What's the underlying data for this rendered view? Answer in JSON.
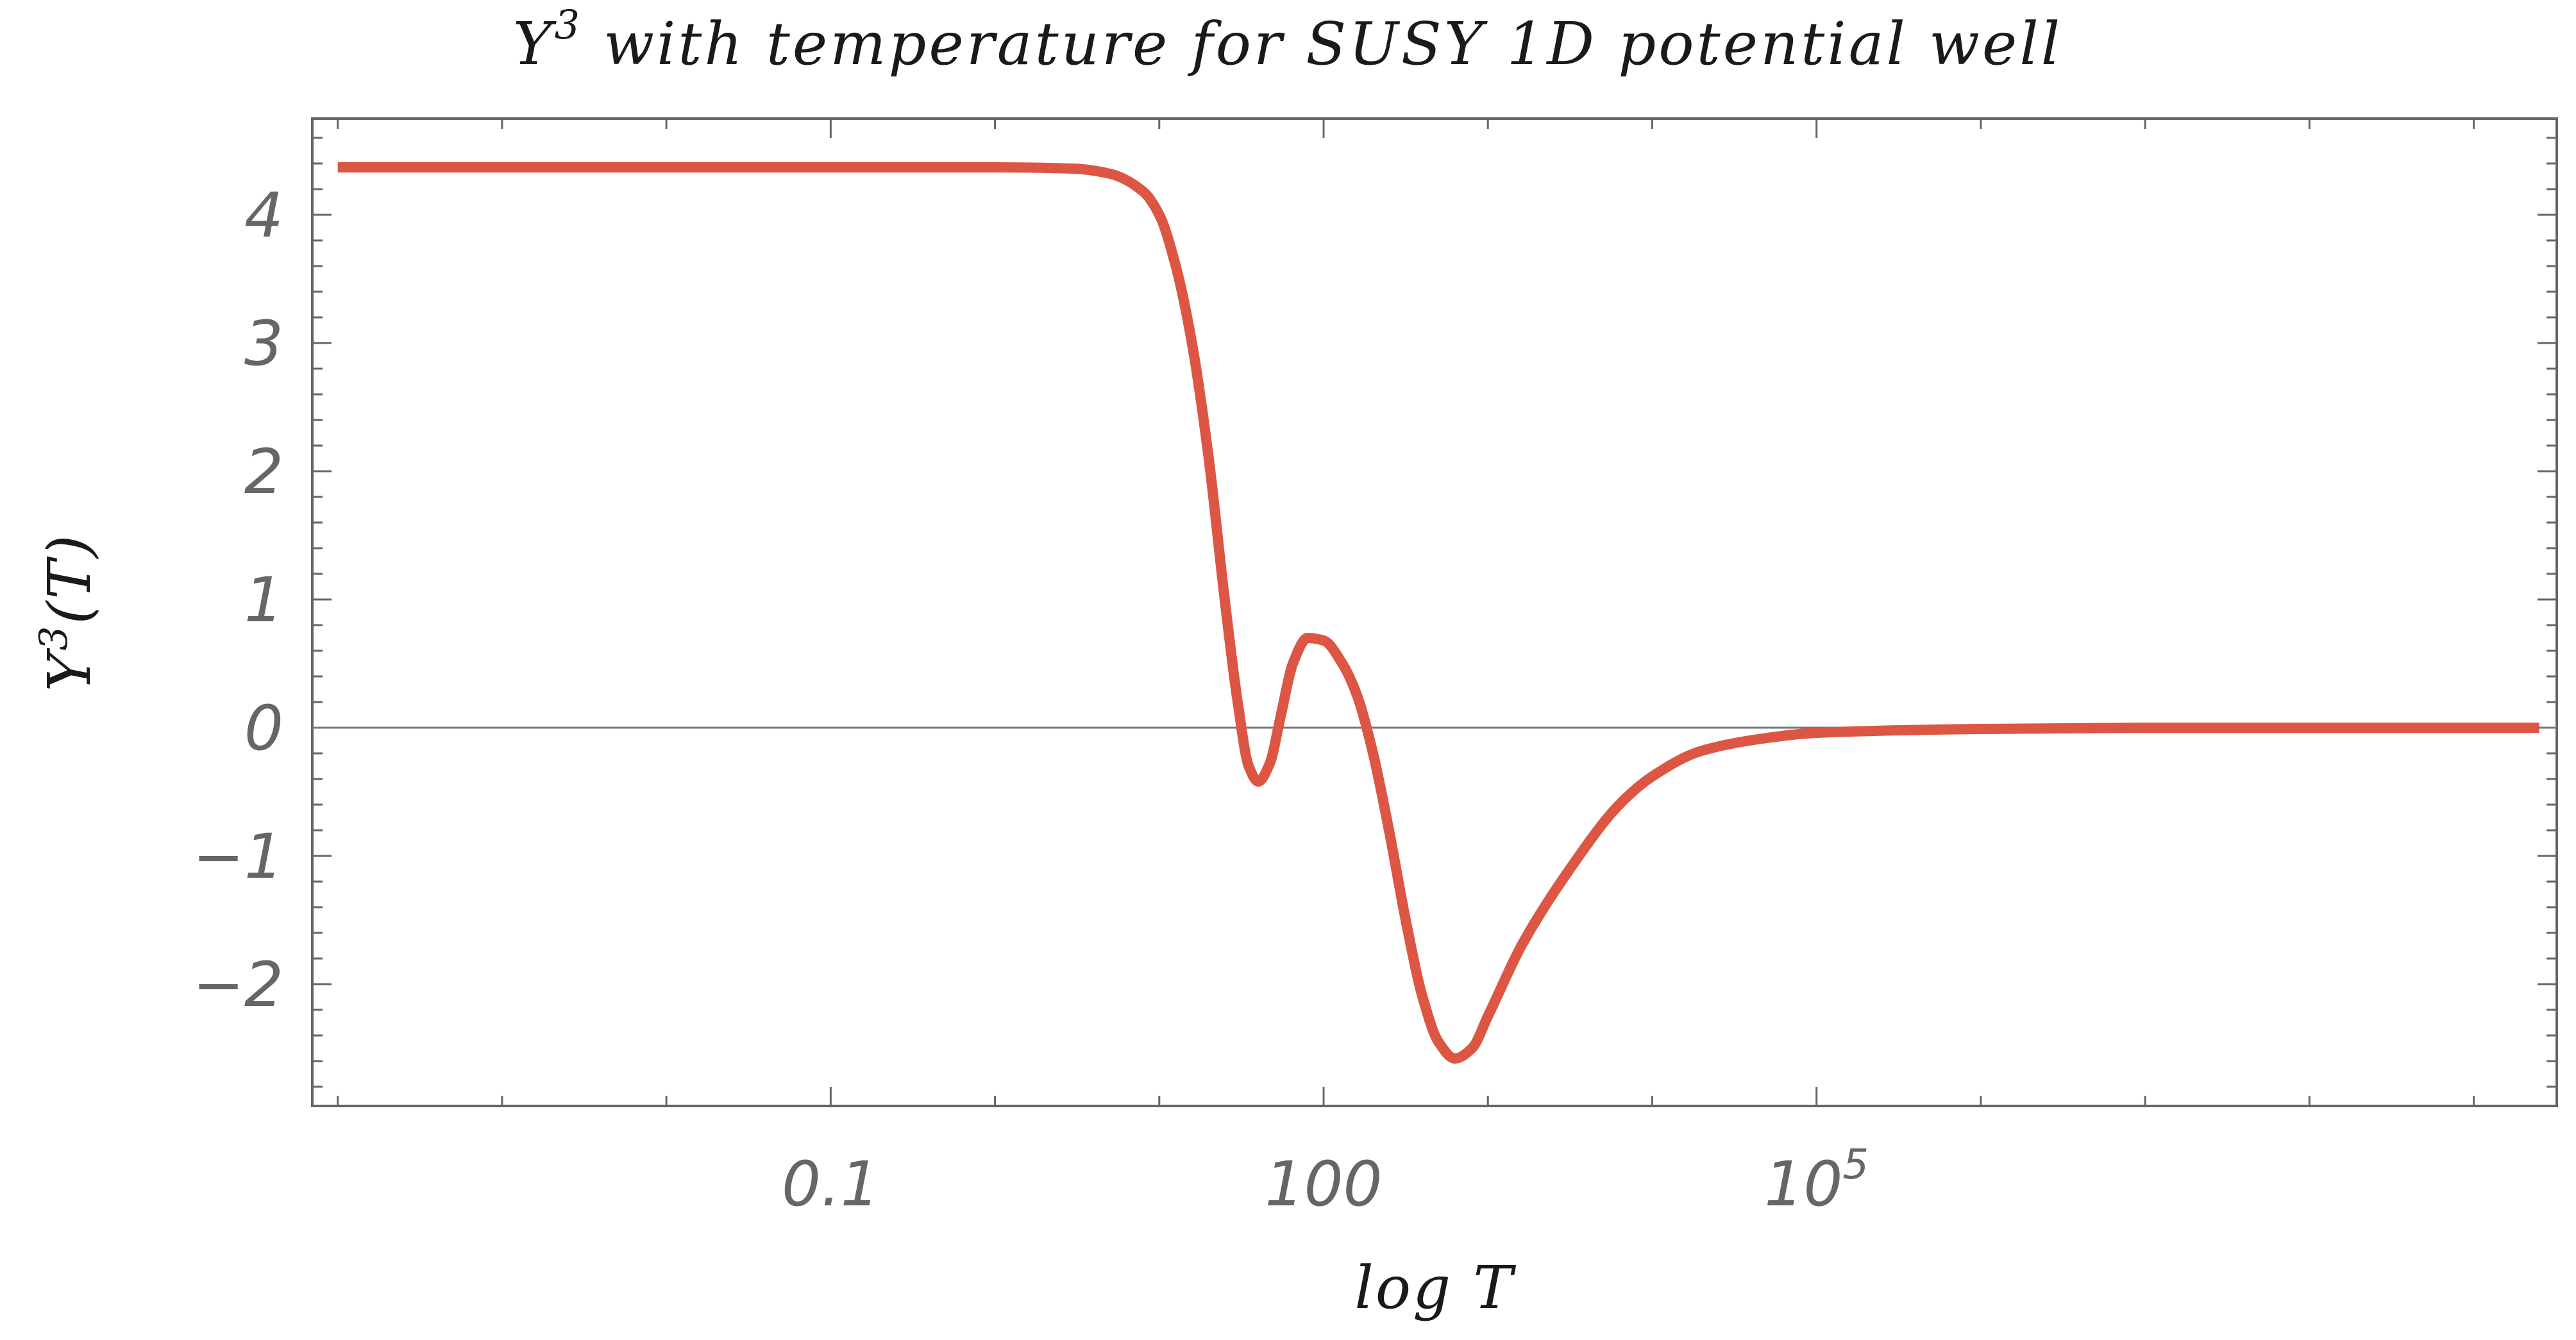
{
  "chart_data": {
    "type": "line",
    "title_prefix": "Y",
    "title_exponent": "3",
    "title_suffix": " with temperature for SUSY 1D potential well",
    "xlabel": "log T",
    "ylabel_base": "Y",
    "ylabel_exponent": "3",
    "ylabel_suffix": "(T)",
    "x_scale": "log",
    "xlim": [
      7e-05,
      3200000000.0
    ],
    "ylim": [
      -2.95,
      4.75
    ],
    "x_ticks": [
      {
        "value": 0.1,
        "label": "0.1"
      },
      {
        "value": 100,
        "label": "100"
      },
      {
        "value": 100000,
        "label": "10",
        "sup": "5"
      }
    ],
    "y_ticks": [
      {
        "value": -2,
        "label": "−2"
      },
      {
        "value": -1,
        "label": "−1"
      },
      {
        "value": 0,
        "label": "0"
      },
      {
        "value": 1,
        "label": "1"
      },
      {
        "value": 2,
        "label": "2"
      },
      {
        "value": 3,
        "label": "3"
      },
      {
        "value": 4,
        "label": "4"
      }
    ],
    "grid": false,
    "zero_line": true,
    "series": [
      {
        "color": "#dd5643",
        "points": [
          [
            0.0001,
            4.37
          ],
          [
            0.001,
            4.37
          ],
          [
            0.01,
            4.37
          ],
          [
            0.1,
            4.37
          ],
          [
            1.0,
            4.37
          ],
          [
            3.0,
            4.36
          ],
          [
            5.0,
            4.32
          ],
          [
            8.0,
            4.18
          ],
          [
            10.0,
            4.0
          ],
          [
            12.6,
            3.6
          ],
          [
            15.8,
            3.0
          ],
          [
            20.0,
            2.1
          ],
          [
            25.0,
            1.0
          ],
          [
            30.0,
            0.2
          ],
          [
            35.0,
            -0.3
          ],
          [
            40.0,
            -0.42
          ],
          [
            47.0,
            -0.28
          ],
          [
            55.0,
            0.1
          ],
          [
            65.0,
            0.5
          ],
          [
            80.0,
            0.7
          ],
          [
            100.0,
            0.68
          ],
          [
            130.0,
            0.5
          ],
          [
            160.0,
            0.25
          ],
          [
            200.0,
            -0.2
          ],
          [
            250.0,
            -0.8
          ],
          [
            316.0,
            -1.5
          ],
          [
            400.0,
            -2.1
          ],
          [
            500.0,
            -2.45
          ],
          [
            630.0,
            -2.58
          ],
          [
            800.0,
            -2.5
          ],
          [
            1000.0,
            -2.25
          ],
          [
            1600.0,
            -1.7
          ],
          [
            3160.0,
            -1.1
          ],
          [
            6300.0,
            -0.6
          ],
          [
            10000.0,
            -0.38
          ],
          [
            20000.0,
            -0.18
          ],
          [
            50000.0,
            -0.08
          ],
          [
            100000.0,
            -0.04
          ],
          [
            1000000.0,
            -0.01
          ],
          [
            10000000.0,
            0.0
          ],
          [
            100000000.0,
            0.0
          ],
          [
            1000000000.0,
            0.0
          ],
          [
            2500000000.0,
            0.0
          ]
        ]
      }
    ]
  }
}
